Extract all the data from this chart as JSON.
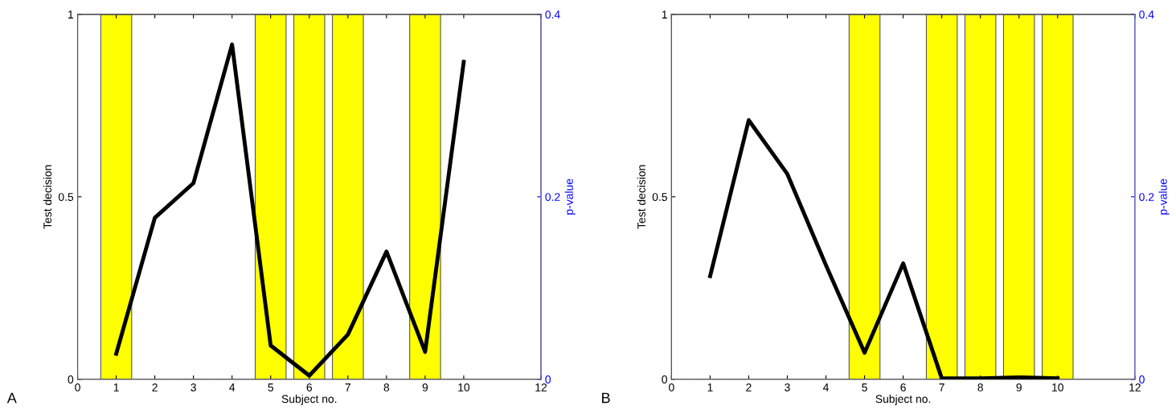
{
  "chart_data": [
    {
      "type": "bar",
      "xlabel": "Subject no.",
      "ylabel": "Test decision",
      "y2label": "p-value",
      "annotations": [
        "A"
      ],
      "x": [
        1,
        2,
        3,
        4,
        5,
        6,
        7,
        8,
        9,
        10
      ],
      "xlim": [
        0,
        12
      ],
      "xticks": [
        0,
        1,
        2,
        3,
        4,
        5,
        6,
        7,
        8,
        9,
        10,
        12
      ],
      "ylim": [
        0,
        1
      ],
      "yticks": [
        0,
        0.5,
        1
      ],
      "y2lim": [
        0,
        0.4
      ],
      "y2ticks": [
        0,
        0.2,
        0.4
      ],
      "grid": false,
      "legend": false,
      "series": [
        {
          "color": "#ffff00",
          "values": [
            1,
            0,
            0,
            0,
            1,
            1,
            1,
            0,
            1,
            0
          ]
        },
        {
          "type": "line",
          "axis": "y2",
          "color": "#000000",
          "values": [
            0.028,
            0.177,
            0.215,
            0.367,
            0.037,
            0.004,
            0.049,
            0.14,
            0.03,
            0.348
          ]
        }
      ]
    },
    {
      "type": "bar",
      "xlabel": "Subject no.",
      "ylabel": "Test decision",
      "y2label": "p-value",
      "annotations": [
        "B"
      ],
      "x": [
        1,
        2,
        3,
        4,
        5,
        6,
        7,
        8,
        9,
        10
      ],
      "xlim": [
        0,
        12
      ],
      "xticks": [
        0,
        1,
        2,
        3,
        4,
        5,
        6,
        7,
        8,
        9,
        10,
        12
      ],
      "ylim": [
        0,
        1
      ],
      "yticks": [
        0,
        0.5,
        1
      ],
      "y2lim": [
        0,
        0.4
      ],
      "y2ticks": [
        0,
        0.2,
        0.4
      ],
      "grid": false,
      "legend": false,
      "series": [
        {
          "color": "#ffff00",
          "values": [
            0,
            0,
            0,
            0,
            1,
            0,
            1,
            1,
            1,
            1
          ]
        },
        {
          "type": "line",
          "axis": "y2",
          "color": "#000000",
          "values": [
            0.113,
            0.284,
            0.225,
            0.125,
            0.029,
            0.127,
            0.001,
            0.001,
            0.002,
            0.001
          ]
        }
      ]
    }
  ]
}
